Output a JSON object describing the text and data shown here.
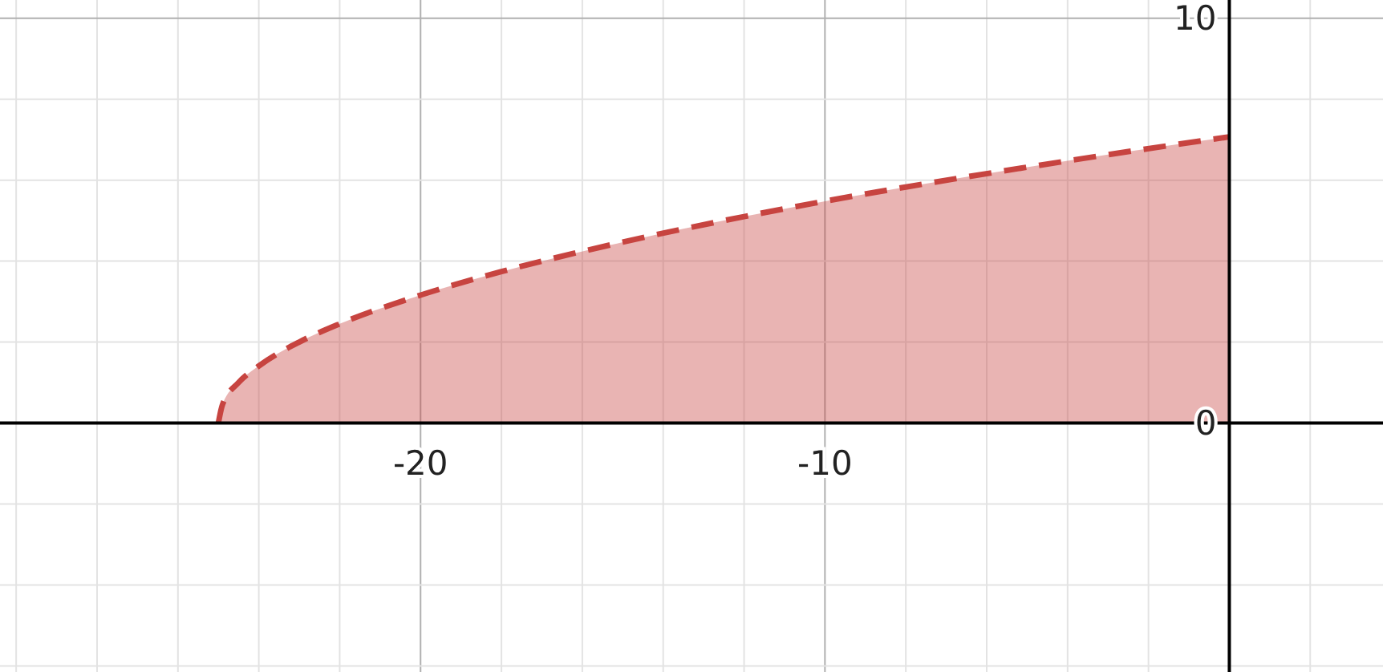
{
  "chart_data": {
    "type": "area",
    "line_style": "dashed",
    "grid": true,
    "xlim": [
      -30.4,
      3.8
    ],
    "ylim": [
      -6.15,
      10.45
    ],
    "xticks": [
      {
        "value": -30,
        "label": null
      },
      {
        "value": -28,
        "label": null
      },
      {
        "value": -26,
        "label": null
      },
      {
        "value": -24,
        "label": null
      },
      {
        "value": -22,
        "label": null
      },
      -20,
      {
        "value": -18,
        "label": null
      },
      {
        "value": -16,
        "label": null
      },
      {
        "value": -14,
        "label": null
      },
      {
        "value": -12,
        "label": null
      },
      -10,
      {
        "value": -8,
        "label": null
      },
      {
        "value": -6,
        "label": null
      },
      {
        "value": -4,
        "label": null
      },
      {
        "value": -2,
        "label": null
      },
      {
        "value": 0,
        "label": null
      },
      {
        "value": 2,
        "label": null
      }
    ],
    "yticks": [
      {
        "value": -6,
        "label": null
      },
      {
        "value": -4,
        "label": null
      },
      {
        "value": -2,
        "label": null
      },
      0,
      {
        "value": 2,
        "label": null
      },
      {
        "value": 4,
        "label": null
      },
      {
        "value": 6,
        "label": null
      },
      {
        "value": 8,
        "label": null
      },
      10
    ],
    "series": [
      {
        "color": "#c74440",
        "x": [
          -25,
          -24.9,
          -24.5,
          -24,
          -23,
          -22,
          -20,
          -18,
          -15,
          -12,
          -10,
          -8,
          -5,
          -3,
          0
        ],
        "values": [
          0,
          0.45,
          1,
          1.41,
          2,
          2.45,
          3.16,
          3.74,
          4.47,
          5.1,
          5.48,
          5.83,
          6.32,
          6.63,
          7.07
        ]
      }
    ]
  }
}
